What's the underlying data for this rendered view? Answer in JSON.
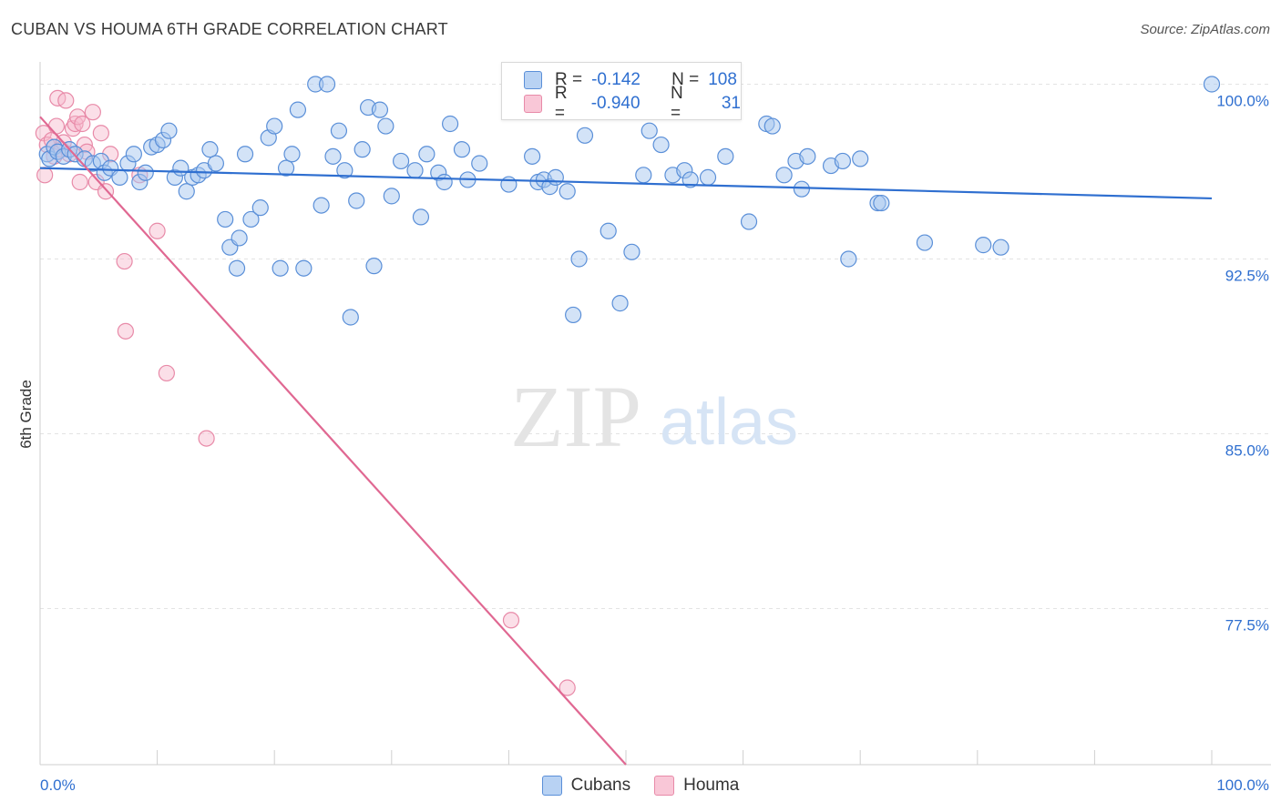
{
  "header": {
    "title": "CUBAN VS HOUMA 6TH GRADE CORRELATION CHART",
    "source": "Source: ZipAtlas.com"
  },
  "watermark": {
    "part1": "ZIP",
    "part2": "atlas"
  },
  "colors": {
    "cuban_fill": "#a8c8f0",
    "cuban_stroke": "#5a8fd8",
    "cuban_line": "#2f6fd0",
    "houma_fill": "#f7b8cc",
    "houma_stroke": "#e88aa8",
    "houma_line": "#e06892",
    "axis_label": "#2f6fd0",
    "grid": "#e3e3e3"
  },
  "legend": {
    "rows": [
      {
        "r_label": "R =",
        "r_value": "-0.142",
        "n_label": "N =",
        "n_value": "108"
      },
      {
        "r_label": "R =",
        "r_value": "-0.940",
        "n_label": "N =",
        "n_value": "31"
      }
    ]
  },
  "chart_data": {
    "type": "scatter",
    "title": "CUBAN VS HOUMA 6TH GRADE CORRELATION CHART",
    "xlabel": "",
    "ylabel": "6th Grade",
    "xlim": [
      0,
      100
    ],
    "ylim": [
      70.8,
      100.8
    ],
    "x_tick_labels": [
      "0.0%",
      "100.0%"
    ],
    "y_ticks": [
      77.5,
      85.0,
      92.5,
      100.0
    ],
    "y_tick_labels": [
      "77.5%",
      "85.0%",
      "92.5%",
      "100.0%"
    ],
    "grid": true,
    "legend_position": "top-center",
    "series": [
      {
        "name": "Cubans",
        "r": -0.142,
        "n": 108,
        "trend": {
          "x": [
            0,
            100
          ],
          "y": [
            96.4,
            95.1
          ]
        },
        "points": [
          [
            0.6,
            97.0
          ],
          [
            0.8,
            96.8
          ],
          [
            1.2,
            97.3
          ],
          [
            1.5,
            97.1
          ],
          [
            2.0,
            96.9
          ],
          [
            2.5,
            97.2
          ],
          [
            3.0,
            97.0
          ],
          [
            3.8,
            96.8
          ],
          [
            4.5,
            96.6
          ],
          [
            5.2,
            96.7
          ],
          [
            5.5,
            96.2
          ],
          [
            6.0,
            96.4
          ],
          [
            6.8,
            96.0
          ],
          [
            7.5,
            96.6
          ],
          [
            8.0,
            97.0
          ],
          [
            8.5,
            95.8
          ],
          [
            9.0,
            96.2
          ],
          [
            9.5,
            97.3
          ],
          [
            10.0,
            97.4
          ],
          [
            10.5,
            97.6
          ],
          [
            11.0,
            98.0
          ],
          [
            11.5,
            96.0
          ],
          [
            12.0,
            96.4
          ],
          [
            12.5,
            95.4
          ],
          [
            13.0,
            96.0
          ],
          [
            13.5,
            96.1
          ],
          [
            14.0,
            96.3
          ],
          [
            14.5,
            97.2
          ],
          [
            15.0,
            96.6
          ],
          [
            15.8,
            94.2
          ],
          [
            16.2,
            93.0
          ],
          [
            16.8,
            92.1
          ],
          [
            17.0,
            93.4
          ],
          [
            17.5,
            97.0
          ],
          [
            18.0,
            94.2
          ],
          [
            18.8,
            94.7
          ],
          [
            19.5,
            97.7
          ],
          [
            20.0,
            98.2
          ],
          [
            20.5,
            92.1
          ],
          [
            21.0,
            96.4
          ],
          [
            21.5,
            97.0
          ],
          [
            22.0,
            98.9
          ],
          [
            22.5,
            92.1
          ],
          [
            23.5,
            100.0
          ],
          [
            24.0,
            94.8
          ],
          [
            24.5,
            100.0
          ],
          [
            25.0,
            96.9
          ],
          [
            25.5,
            98.0
          ],
          [
            26.0,
            96.3
          ],
          [
            26.5,
            90.0
          ],
          [
            27.0,
            95.0
          ],
          [
            27.5,
            97.2
          ],
          [
            28.0,
            99.0
          ],
          [
            28.5,
            92.2
          ],
          [
            29.0,
            98.9
          ],
          [
            29.5,
            98.2
          ],
          [
            30.0,
            95.2
          ],
          [
            30.8,
            96.7
          ],
          [
            32.0,
            96.3
          ],
          [
            32.5,
            94.3
          ],
          [
            33.0,
            97.0
          ],
          [
            34.0,
            96.2
          ],
          [
            34.5,
            95.8
          ],
          [
            35.0,
            98.3
          ],
          [
            36.0,
            97.2
          ],
          [
            36.5,
            95.9
          ],
          [
            37.5,
            96.6
          ],
          [
            40.0,
            95.7
          ],
          [
            42.0,
            96.9
          ],
          [
            42.5,
            95.8
          ],
          [
            43.0,
            95.9
          ],
          [
            43.5,
            95.6
          ],
          [
            44.0,
            96.0
          ],
          [
            45.0,
            95.4
          ],
          [
            45.5,
            90.1
          ],
          [
            46.0,
            92.5
          ],
          [
            46.5,
            97.8
          ],
          [
            48.5,
            93.7
          ],
          [
            49.5,
            90.6
          ],
          [
            50.5,
            92.8
          ],
          [
            51.5,
            96.1
          ],
          [
            52.0,
            98.0
          ],
          [
            53.0,
            97.4
          ],
          [
            54.0,
            96.1
          ],
          [
            55.0,
            96.3
          ],
          [
            55.5,
            95.9
          ],
          [
            57.0,
            96.0
          ],
          [
            58.5,
            96.9
          ],
          [
            60.5,
            94.1
          ],
          [
            62.0,
            98.3
          ],
          [
            62.5,
            98.2
          ],
          [
            63.5,
            96.1
          ],
          [
            64.5,
            96.7
          ],
          [
            65.0,
            95.5
          ],
          [
            65.5,
            96.9
          ],
          [
            67.5,
            96.5
          ],
          [
            68.5,
            96.7
          ],
          [
            69.0,
            92.5
          ],
          [
            70.0,
            96.8
          ],
          [
            71.5,
            94.9
          ],
          [
            71.8,
            94.9
          ],
          [
            75.5,
            93.2
          ],
          [
            80.5,
            93.1
          ],
          [
            82.0,
            93.0
          ],
          [
            100.0,
            100.0
          ]
        ]
      },
      {
        "name": "Houma",
        "r": -0.94,
        "n": 31,
        "trend": {
          "x": [
            0,
            50
          ],
          "y": [
            98.6,
            70.8
          ]
        },
        "points": [
          [
            0.3,
            97.9
          ],
          [
            0.4,
            96.1
          ],
          [
            0.6,
            97.4
          ],
          [
            1.0,
            97.6
          ],
          [
            1.2,
            96.9
          ],
          [
            1.4,
            98.2
          ],
          [
            1.5,
            99.4
          ],
          [
            1.8,
            97.2
          ],
          [
            2.0,
            97.5
          ],
          [
            2.2,
            99.3
          ],
          [
            2.5,
            97.0
          ],
          [
            2.8,
            98.1
          ],
          [
            3.0,
            98.3
          ],
          [
            3.2,
            98.6
          ],
          [
            3.4,
            95.8
          ],
          [
            3.6,
            98.3
          ],
          [
            3.8,
            97.4
          ],
          [
            4.0,
            97.1
          ],
          [
            4.5,
            98.8
          ],
          [
            4.8,
            95.8
          ],
          [
            5.2,
            97.9
          ],
          [
            5.6,
            95.4
          ],
          [
            6.0,
            97.0
          ],
          [
            7.2,
            92.4
          ],
          [
            7.3,
            89.4
          ],
          [
            8.5,
            96.1
          ],
          [
            10.0,
            93.7
          ],
          [
            10.8,
            87.6
          ],
          [
            14.2,
            84.8
          ],
          [
            40.2,
            77.0
          ],
          [
            45.0,
            74.1
          ]
        ]
      }
    ]
  }
}
